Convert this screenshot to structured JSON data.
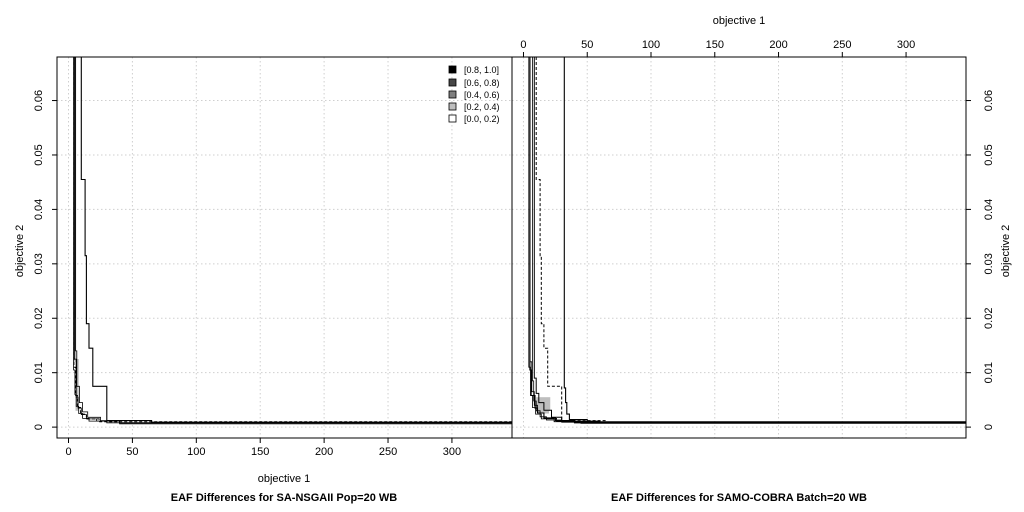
{
  "chart_data": {
    "type": "eaf-difference",
    "x_axis": {
      "label": "objective 1",
      "range": [
        -9,
        347
      ],
      "ticks": [
        0,
        50,
        100,
        150,
        200,
        250,
        300
      ],
      "tick_labels": [
        "0",
        "50",
        "100",
        "150",
        "200",
        "250",
        "300"
      ]
    },
    "y_axis": {
      "label": "objective 2",
      "range": [
        -0.002,
        0.068
      ],
      "ticks": [
        0,
        0.01,
        0.02,
        0.03,
        0.04,
        0.05,
        0.06
      ],
      "tick_labels": [
        "0",
        "0.01",
        "0.02",
        "0.03",
        "0.04",
        "0.05",
        "0.06"
      ]
    },
    "legend": {
      "placement": "top-right of left panel",
      "entries": [
        {
          "label": "[0.8, 1.0]",
          "color": "#000000"
        },
        {
          "label": "[0.6, 0.8)",
          "color": "#474747"
        },
        {
          "label": "[0.4, 0.6)",
          "color": "#7f7f7f"
        },
        {
          "label": "[0.2, 0.4)",
          "color": "#bebebe"
        },
        {
          "label": "[0.0, 0.2)",
          "color": "#ffffff"
        }
      ]
    },
    "panels": [
      {
        "title": "EAF Differences for SA-NSGAII Pop=20 WB",
        "solid_front": [
          [
            10,
            0.07
          ],
          [
            10,
            0.0455
          ],
          [
            13,
            0.0455
          ],
          [
            13,
            0.0315
          ],
          [
            14,
            0.0315
          ],
          [
            14,
            0.019
          ],
          [
            16,
            0.019
          ],
          [
            16,
            0.0145
          ],
          [
            19,
            0.0145
          ],
          [
            19,
            0.0075
          ],
          [
            30,
            0.0075
          ],
          [
            30,
            0.0012
          ],
          [
            65,
            0.0012
          ],
          [
            65,
            0.0009
          ],
          [
            350,
            0.0009
          ]
        ],
        "attain_best": [
          [
            4,
            0.07
          ],
          [
            4,
            0.0105
          ],
          [
            5,
            0.0105
          ],
          [
            5,
            0.006
          ],
          [
            6,
            0.006
          ],
          [
            6,
            0.0038
          ],
          [
            8,
            0.0038
          ],
          [
            8,
            0.0025
          ],
          [
            11,
            0.0025
          ],
          [
            11,
            0.0016
          ],
          [
            16,
            0.0016
          ],
          [
            16,
            0.0011
          ],
          [
            30,
            0.0011
          ],
          [
            30,
            0.0008
          ],
          [
            350,
            0.0008
          ]
        ],
        "attain_median": [
          [
            4.6,
            0.07
          ],
          [
            4.6,
            0.0125
          ],
          [
            6,
            0.0125
          ],
          [
            6,
            0.0055
          ],
          [
            7.5,
            0.0055
          ],
          [
            7.5,
            0.0035
          ],
          [
            10,
            0.0035
          ],
          [
            10,
            0.0023
          ],
          [
            14,
            0.0023
          ],
          [
            14,
            0.0015
          ],
          [
            22,
            0.0015
          ],
          [
            22,
            0.0011
          ],
          [
            40,
            0.0011
          ],
          [
            40,
            0.0008
          ],
          [
            350,
            0.0008
          ]
        ],
        "attain_worst": [
          [
            5.5,
            0.07
          ],
          [
            5.5,
            0.014
          ],
          [
            6.5,
            0.014
          ],
          [
            6.5,
            0.0075
          ],
          [
            8.5,
            0.0075
          ],
          [
            8.5,
            0.0045
          ],
          [
            11,
            0.0045
          ],
          [
            11,
            0.0028
          ],
          [
            15,
            0.0028
          ],
          [
            15,
            0.0018
          ],
          [
            25,
            0.0018
          ],
          [
            25,
            0.0012
          ],
          [
            40,
            0.0012
          ],
          [
            40,
            0.0006
          ],
          [
            350,
            0.0006
          ]
        ],
        "dashed_front": [
          [
            4.2,
            0.07
          ],
          [
            4.2,
            0.011
          ],
          [
            5.5,
            0.011
          ],
          [
            5.5,
            0.0058
          ],
          [
            7,
            0.0058
          ],
          [
            7,
            0.0036
          ],
          [
            9.5,
            0.0036
          ],
          [
            9.5,
            0.0024
          ],
          [
            14,
            0.0024
          ],
          [
            14,
            0.0015
          ],
          [
            24,
            0.0015
          ],
          [
            24,
            0.001
          ],
          [
            350,
            0.001
          ]
        ],
        "shaded_regions": [
          {
            "color": "#bebebe",
            "x": [
              4,
              6
            ],
            "y": [
              0.012,
              0.068
            ]
          },
          {
            "color": "#7f7f7f",
            "x": [
              4.6,
              5.6
            ],
            "y": [
              0.014,
              0.068
            ]
          },
          {
            "color": "#474747",
            "x": [
              5,
              5.4
            ],
            "y": [
              0.02,
              0.068
            ]
          },
          {
            "color": "#bebebe",
            "x": [
              5.5,
              8
            ],
            "y": [
              0.003,
              0.0125
            ]
          }
        ]
      },
      {
        "title": "EAF Differences for SAMO-COBRA Batch=20 WB",
        "solid_front": [
          [
            5,
            0.07
          ],
          [
            5,
            0.0105
          ],
          [
            6,
            0.0105
          ],
          [
            6,
            0.0058
          ],
          [
            9,
            0.0058
          ],
          [
            9,
            0.0035
          ],
          [
            11,
            0.0035
          ],
          [
            11,
            0.0026
          ],
          [
            16,
            0.0026
          ],
          [
            16,
            0.0017
          ],
          [
            25,
            0.0017
          ],
          [
            25,
            0.0012
          ],
          [
            40,
            0.0012
          ],
          [
            40,
            0.0008
          ],
          [
            350,
            0.0008
          ]
        ],
        "attain_best": [
          [
            4.2,
            0.07
          ],
          [
            4.2,
            0.011
          ],
          [
            5.5,
            0.011
          ],
          [
            5.5,
            0.0058
          ],
          [
            7,
            0.0058
          ],
          [
            7,
            0.0036
          ],
          [
            9.5,
            0.0036
          ],
          [
            9.5,
            0.0024
          ],
          [
            14,
            0.0024
          ],
          [
            14,
            0.0015
          ],
          [
            24,
            0.0015
          ],
          [
            24,
            0.001
          ],
          [
            350,
            0.001
          ]
        ],
        "attain_median": [
          [
            5.2,
            0.07
          ],
          [
            5.2,
            0.012
          ],
          [
            6.5,
            0.012
          ],
          [
            6.5,
            0.0065
          ],
          [
            8.5,
            0.0065
          ],
          [
            8.5,
            0.004
          ],
          [
            11,
            0.004
          ],
          [
            11,
            0.0026
          ],
          [
            16,
            0.0026
          ],
          [
            16,
            0.0016
          ],
          [
            26,
            0.0016
          ],
          [
            26,
            0.0011
          ],
          [
            45,
            0.0011
          ],
          [
            45,
            0.0007
          ],
          [
            350,
            0.0007
          ]
        ],
        "attain_worst": [
          [
            7,
            0.07
          ],
          [
            7,
            0.0085
          ],
          [
            8,
            0.0085
          ],
          [
            8,
            0.0048
          ],
          [
            10,
            0.0048
          ],
          [
            10,
            0.003
          ],
          [
            13,
            0.003
          ],
          [
            13,
            0.0019
          ],
          [
            18,
            0.0019
          ],
          [
            18,
            0.0013
          ],
          [
            30,
            0.0013
          ],
          [
            30,
            0.0009
          ],
          [
            350,
            0.0009
          ]
        ],
        "step_front": [
          [
            8.5,
            0.07
          ],
          [
            8.5,
            0.009
          ],
          [
            10,
            0.009
          ],
          [
            10,
            0.0062
          ],
          [
            12,
            0.0062
          ],
          [
            12,
            0.0045
          ],
          [
            16,
            0.0045
          ],
          [
            16,
            0.0031
          ],
          [
            22,
            0.0031
          ],
          [
            22,
            0.0018
          ],
          [
            30,
            0.0018
          ],
          [
            30,
            0.0011
          ],
          [
            60,
            0.0011
          ],
          [
            60,
            0.0009
          ],
          [
            350,
            0.0009
          ]
        ],
        "dashed_front": [
          [
            10,
            0.07
          ],
          [
            10,
            0.0455
          ],
          [
            13,
            0.0455
          ],
          [
            13,
            0.0315
          ],
          [
            14,
            0.0315
          ],
          [
            14,
            0.019
          ],
          [
            16,
            0.019
          ],
          [
            16,
            0.0145
          ],
          [
            19,
            0.0145
          ],
          [
            19,
            0.0075
          ],
          [
            30,
            0.0075
          ],
          [
            30,
            0.0012
          ],
          [
            65,
            0.0012
          ],
          [
            65,
            0.0009
          ],
          [
            350,
            0.0009
          ]
        ],
        "right_solid_front": [
          [
            32,
            0.07
          ],
          [
            32,
            0.0072
          ],
          [
            33,
            0.0072
          ],
          [
            33,
            0.0045
          ],
          [
            34,
            0.0045
          ],
          [
            34,
            0.0024
          ],
          [
            36,
            0.0024
          ],
          [
            36,
            0.0014
          ],
          [
            50,
            0.0014
          ],
          [
            50,
            0.0009
          ],
          [
            350,
            0.0009
          ]
        ],
        "shaded_regions": [
          {
            "color": "#bebebe",
            "x": [
              10,
              21
            ],
            "y": [
              0.003,
              0.0055
            ]
          },
          {
            "color": "#bebebe",
            "x": [
              10.5,
              20
            ],
            "y": [
              0.0025,
              0.003
            ]
          }
        ]
      }
    ]
  }
}
